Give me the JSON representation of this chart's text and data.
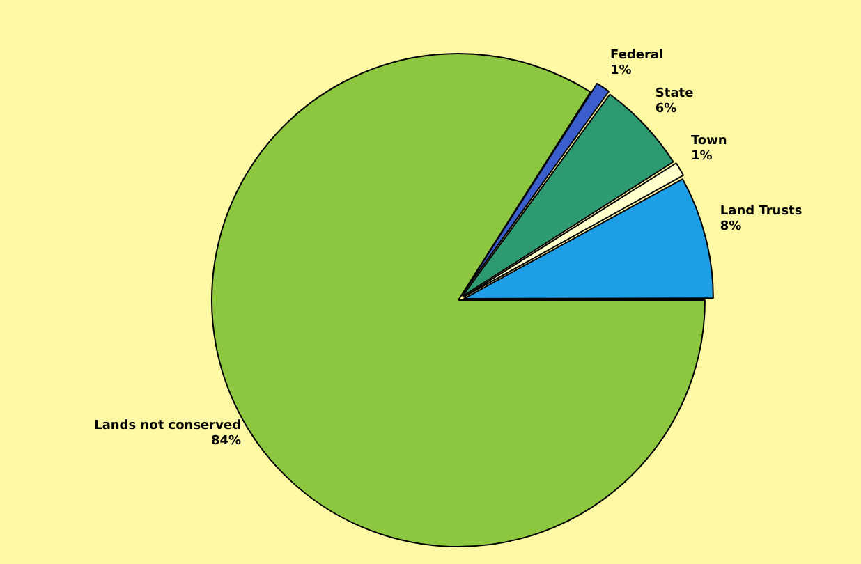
{
  "chart_data": {
    "type": "pie",
    "categories": [
      "Federal",
      "State",
      "Town",
      "Land Trusts",
      "Lands not conserved"
    ],
    "values": [
      1,
      6,
      1,
      8,
      84
    ],
    "colors": [
      "#3a5fcd",
      "#2e9a70",
      "#ffffcc",
      "#1f9ee8",
      "#8dc63f"
    ],
    "value_labels": [
      "1%",
      "6%",
      "1%",
      "8%",
      "84%"
    ],
    "legend": false
  }
}
